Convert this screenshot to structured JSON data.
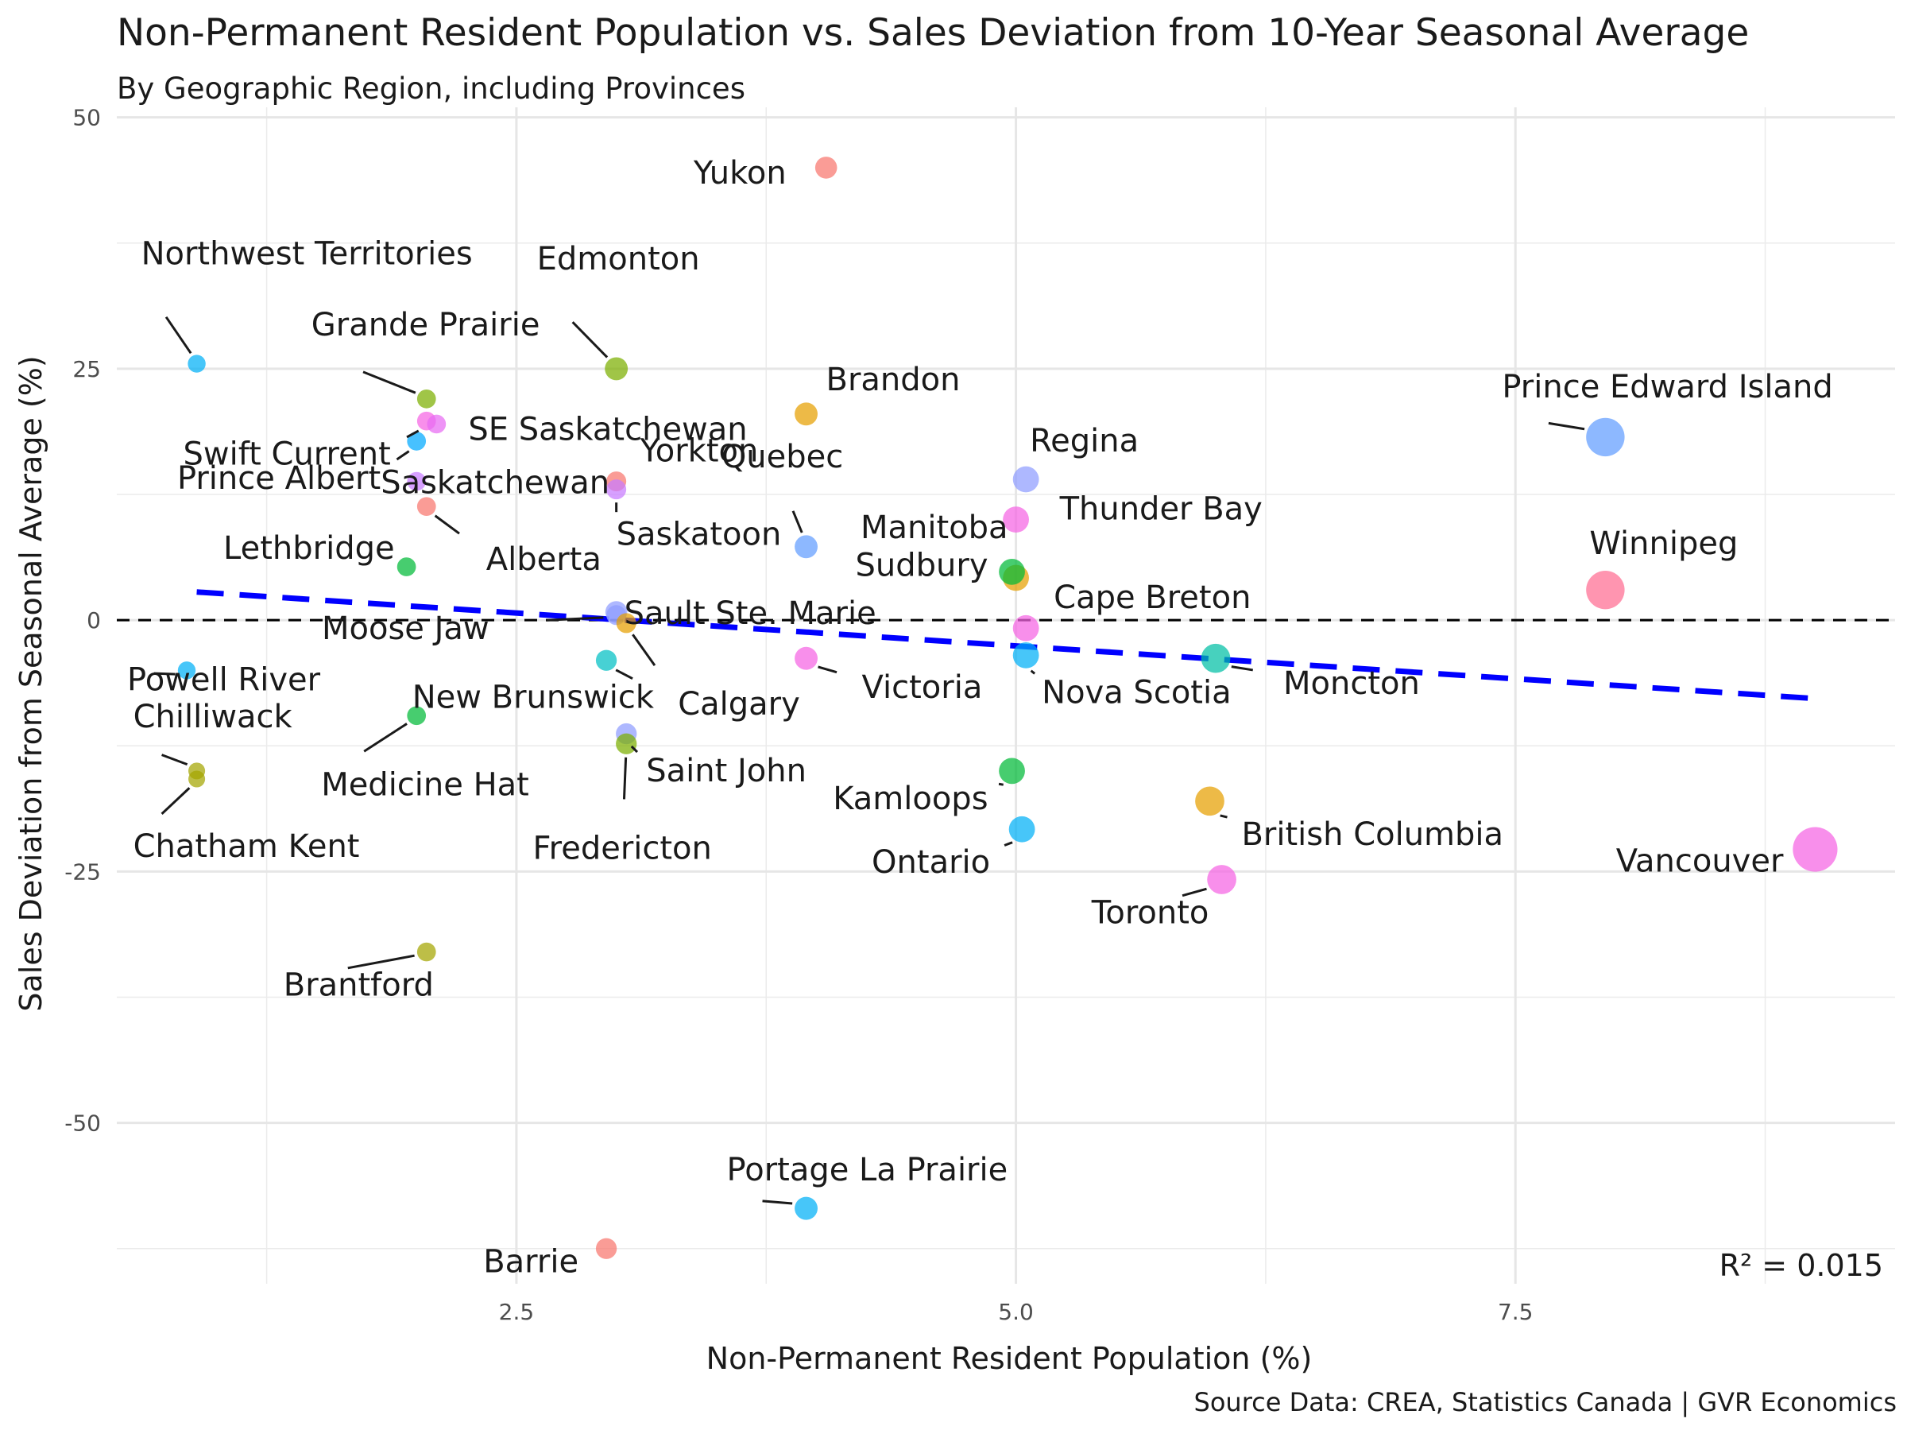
{
  "chart_data": {
    "type": "scatter",
    "title": "Non-Permanent Resident Population vs. Sales Deviation from 10-Year Seasonal Average",
    "subtitle": "By Geographic Region, including Provinces",
    "xlabel": "Non-Permanent Resident Population (%)",
    "ylabel": "Sales Deviation from Seasonal Average (%)",
    "caption": "Source Data: CREA, Statistics Canada | GVR Economics",
    "annotation": "R² = 0.015",
    "xlim": [
      0.5,
      9.4
    ],
    "ylim": [
      -66,
      51
    ],
    "x_ticks": [
      2.5,
      5.0,
      7.5
    ],
    "x_tick_labels": [
      "2.5",
      "5.0",
      "7.5"
    ],
    "y_ticks": [
      -50,
      -25,
      0,
      25,
      50
    ],
    "y_tick_labels": [
      "-50",
      "-25",
      "0",
      "25",
      "50"
    ],
    "grid": true,
    "legend": "none",
    "reference_line": {
      "y": 0,
      "style": "dashed",
      "color": "#000000"
    },
    "trend_line": {
      "x": [
        0.9,
        9.0
      ],
      "y": [
        2.8,
        -7.8
      ],
      "style": "dashed",
      "color": "#0000ff"
    },
    "points": [
      {
        "label": "Yukon",
        "x": 4.05,
        "y": 45,
        "size": 1.2,
        "color": "#F8766D"
      },
      {
        "label": "Northwest Territories",
        "x": 0.9,
        "y": 25.5,
        "size": 0.8,
        "color": "#00B0F6"
      },
      {
        "label": "Edmonton",
        "x": 3.0,
        "y": 25,
        "size": 1.3,
        "color": "#7CAE00"
      },
      {
        "label": "Grande Prairie",
        "x": 2.05,
        "y": 22,
        "size": 0.9,
        "color": "#7CAE00"
      },
      {
        "label": "Swift Current",
        "x": 2.05,
        "y": 19.8,
        "size": 0.9,
        "color": "#F564E3"
      },
      {
        "label": "SE Saskatchewan",
        "x": 2.1,
        "y": 19.5,
        "size": 0.9,
        "color": "#E76BF3"
      },
      {
        "label": "Prince Albert",
        "x": 2.0,
        "y": 17.8,
        "size": 0.9,
        "color": "#00A9FF"
      },
      {
        "label": "Saskatchewan",
        "x": 2.0,
        "y": 13.8,
        "size": 0.9,
        "color": "#C77CFF"
      },
      {
        "label": "Alberta",
        "x": 2.05,
        "y": 11.3,
        "size": 0.9,
        "color": "#F8766D"
      },
      {
        "label": "Yorkton",
        "x": 3.0,
        "y": 13.8,
        "size": 1.0,
        "color": "#F8766D"
      },
      {
        "label": "Saskatoon",
        "x": 3.0,
        "y": 13,
        "size": 1.0,
        "color": "#C77CFF"
      },
      {
        "label": "Brandon",
        "x": 3.95,
        "y": 20.5,
        "size": 1.3,
        "color": "#E69F00"
      },
      {
        "label": "Quebec",
        "x": 3.95,
        "y": 7.3,
        "size": 1.3,
        "color": "#619CFF"
      },
      {
        "label": "Regina",
        "x": 5.05,
        "y": 14,
        "size": 1.6,
        "color": "#8F9CFF"
      },
      {
        "label": "Thunder Bay",
        "x": 5.0,
        "y": 10,
        "size": 1.6,
        "color": "#F564E3"
      },
      {
        "label": "Manitoba",
        "x": 5.0,
        "y": 4.2,
        "size": 1.6,
        "color": "#E69F00"
      },
      {
        "label": "Sudbury",
        "x": 4.98,
        "y": 4.8,
        "size": 1.6,
        "color": "#00BA38"
      },
      {
        "label": "Lethbridge",
        "x": 1.95,
        "y": 5.3,
        "size": 0.9,
        "color": "#00BA38"
      },
      {
        "label": "Cape Breton",
        "x": 5.05,
        "y": -0.8,
        "size": 1.6,
        "color": "#F564E3"
      },
      {
        "label": "Sault Ste. Marie",
        "x": 3.0,
        "y": 0.8,
        "size": 1.2,
        "color": "#8F9CFF"
      },
      {
        "label": "Moose Jaw",
        "x": 3.0,
        "y": 0.5,
        "size": 1.0,
        "color": "#8F9CFF"
      },
      {
        "label": "Calgary",
        "x": 3.05,
        "y": -0.3,
        "size": 1.0,
        "color": "#E69F00"
      },
      {
        "label": "Powell River",
        "x": 0.85,
        "y": -5,
        "size": 0.8,
        "color": "#00B0F6"
      },
      {
        "label": "New Brunswick",
        "x": 2.95,
        "y": -4,
        "size": 1.1,
        "color": "#00BFC4"
      },
      {
        "label": "Victoria",
        "x": 3.95,
        "y": -3.8,
        "size": 1.3,
        "color": "#F564E3"
      },
      {
        "label": "Nova Scotia",
        "x": 5.05,
        "y": -3.5,
        "size": 1.6,
        "color": "#00B0F6"
      },
      {
        "label": "Moncton",
        "x": 6.0,
        "y": -3.8,
        "size": 1.9,
        "color": "#00BFA5"
      },
      {
        "label": "Chilliwack",
        "x": 0.9,
        "y": -15,
        "size": 0.7,
        "color": "#A3A500"
      },
      {
        "label": "Chatham Kent",
        "x": 0.9,
        "y": -15.8,
        "size": 0.7,
        "color": "#A3A500"
      },
      {
        "label": "Medicine Hat",
        "x": 2.0,
        "y": -9.5,
        "size": 0.9,
        "color": "#00BA38"
      },
      {
        "label": "Saint John",
        "x": 3.05,
        "y": -11.3,
        "size": 1.1,
        "color": "#8F9CFF"
      },
      {
        "label": "Fredericton",
        "x": 3.05,
        "y": -12.3,
        "size": 1.1,
        "color": "#7CAE00"
      },
      {
        "label": "Kamloops",
        "x": 4.98,
        "y": -15,
        "size": 1.6,
        "color": "#00BA38"
      },
      {
        "label": "British Columbia",
        "x": 5.97,
        "y": -18,
        "size": 1.9,
        "color": "#E69F00"
      },
      {
        "label": "Ontario",
        "x": 5.03,
        "y": -20.8,
        "size": 1.6,
        "color": "#00B0F6"
      },
      {
        "label": "Toronto",
        "x": 6.03,
        "y": -25.8,
        "size": 1.9,
        "color": "#F564E3"
      },
      {
        "label": "Prince Edward Island",
        "x": 7.95,
        "y": 18.2,
        "size": 2.8,
        "color": "#619CFF"
      },
      {
        "label": "Winnipeg",
        "x": 7.95,
        "y": 3,
        "size": 2.8,
        "color": "#FF6C91"
      },
      {
        "label": "Vancouver",
        "x": 9.0,
        "y": -22.8,
        "size": 3.4,
        "color": "#F564E3"
      },
      {
        "label": "Brantford",
        "x": 2.05,
        "y": -33,
        "size": 0.9,
        "color": "#A3A500"
      },
      {
        "label": "Portage La Prairie",
        "x": 3.95,
        "y": -58.5,
        "size": 1.3,
        "color": "#00B0F6"
      },
      {
        "label": "Barrie",
        "x": 2.95,
        "y": -62.5,
        "size": 1.1,
        "color": "#F8766D"
      }
    ]
  }
}
